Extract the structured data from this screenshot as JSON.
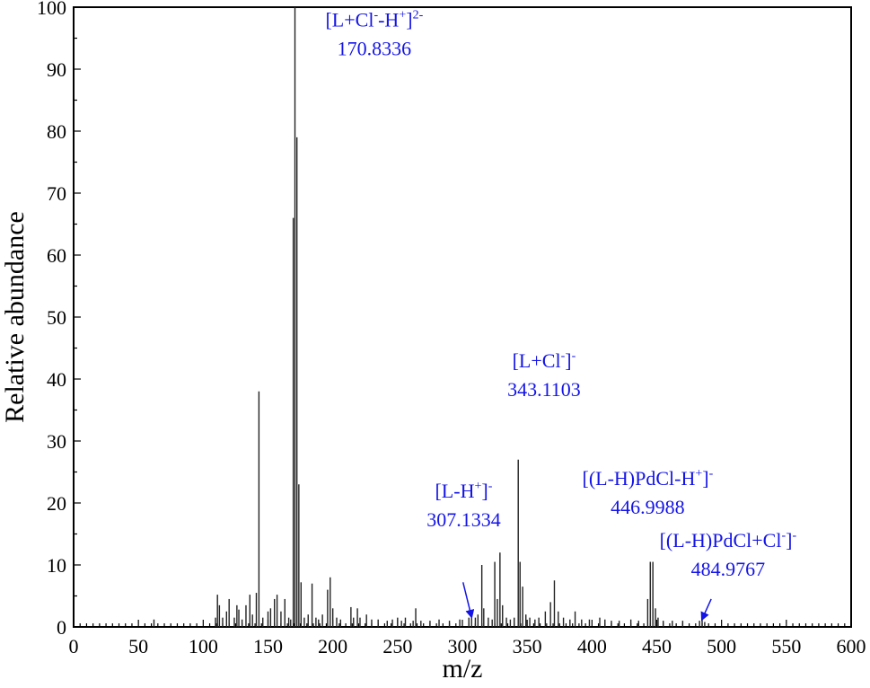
{
  "chart_data": {
    "type": "bar",
    "xlabel": "m/z",
    "ylabel": "Relative abundance",
    "xlim": [
      0,
      600
    ],
    "ylim": [
      0,
      100
    ],
    "x_ticks": [
      0,
      50,
      100,
      150,
      200,
      250,
      300,
      350,
      400,
      450,
      500,
      550,
      600
    ],
    "y_ticks": [
      0,
      10,
      20,
      30,
      40,
      50,
      60,
      70,
      80,
      90,
      100
    ],
    "grid": false,
    "annotation_color": "#1414e6",
    "peaks": [
      {
        "mz": 62,
        "y": 1.2
      },
      {
        "mz": 109.5,
        "y": 1.5
      },
      {
        "mz": 111,
        "y": 5.2
      },
      {
        "mz": 112.5,
        "y": 3.5
      },
      {
        "mz": 115,
        "y": 1.5
      },
      {
        "mz": 118,
        "y": 2.5
      },
      {
        "mz": 120,
        "y": 4.5
      },
      {
        "mz": 124,
        "y": 1.5
      },
      {
        "mz": 126,
        "y": 3.5
      },
      {
        "mz": 127.5,
        "y": 2.8
      },
      {
        "mz": 130,
        "y": 1.2
      },
      {
        "mz": 133,
        "y": 3.5
      },
      {
        "mz": 136,
        "y": 5.2
      },
      {
        "mz": 138,
        "y": 2.0
      },
      {
        "mz": 141,
        "y": 5.5
      },
      {
        "mz": 143,
        "y": 38
      },
      {
        "mz": 146,
        "y": 1.5
      },
      {
        "mz": 150,
        "y": 2.5
      },
      {
        "mz": 152,
        "y": 3.0
      },
      {
        "mz": 155,
        "y": 4.5
      },
      {
        "mz": 157,
        "y": 5.2
      },
      {
        "mz": 160,
        "y": 2.5
      },
      {
        "mz": 163,
        "y": 4.5
      },
      {
        "mz": 166,
        "y": 1.5
      },
      {
        "mz": 167.5,
        "y": 1.2
      },
      {
        "mz": 169.5,
        "y": 66
      },
      {
        "mz": 170.8,
        "y": 100
      },
      {
        "mz": 172.3,
        "y": 79
      },
      {
        "mz": 173.8,
        "y": 23
      },
      {
        "mz": 175.5,
        "y": 7.2
      },
      {
        "mz": 178,
        "y": 1.5
      },
      {
        "mz": 181,
        "y": 2.0
      },
      {
        "mz": 184,
        "y": 7.0
      },
      {
        "mz": 187,
        "y": 1.5
      },
      {
        "mz": 189,
        "y": 1.2
      },
      {
        "mz": 192,
        "y": 2.0
      },
      {
        "mz": 196,
        "y": 6.0
      },
      {
        "mz": 198,
        "y": 8.0
      },
      {
        "mz": 200,
        "y": 3.0
      },
      {
        "mz": 203,
        "y": 1.5
      },
      {
        "mz": 206,
        "y": 1.2
      },
      {
        "mz": 214,
        "y": 3.2
      },
      {
        "mz": 216,
        "y": 1.5
      },
      {
        "mz": 219,
        "y": 3.0
      },
      {
        "mz": 221,
        "y": 1.5
      },
      {
        "mz": 226,
        "y": 2.0
      },
      {
        "mz": 230,
        "y": 1.2
      },
      {
        "mz": 235,
        "y": 1.2
      },
      {
        "mz": 242,
        "y": 1.0
      },
      {
        "mz": 246,
        "y": 1.2
      },
      {
        "mz": 250,
        "y": 1.5
      },
      {
        "mz": 253,
        "y": 1.0
      },
      {
        "mz": 256,
        "y": 1.5
      },
      {
        "mz": 262,
        "y": 1.0
      },
      {
        "mz": 264,
        "y": 3.0
      },
      {
        "mz": 268,
        "y": 1.0
      },
      {
        "mz": 275,
        "y": 1.0
      },
      {
        "mz": 282,
        "y": 1.2
      },
      {
        "mz": 290,
        "y": 1.0
      },
      {
        "mz": 298,
        "y": 1.2
      },
      {
        "mz": 305,
        "y": 1.5
      },
      {
        "mz": 307.1,
        "y": 1.8
      },
      {
        "mz": 310,
        "y": 1.5
      },
      {
        "mz": 312,
        "y": 2.0
      },
      {
        "mz": 315,
        "y": 10.0
      },
      {
        "mz": 316.5,
        "y": 3.0
      },
      {
        "mz": 320,
        "y": 1.5
      },
      {
        "mz": 323,
        "y": 1.2
      },
      {
        "mz": 325,
        "y": 10.5
      },
      {
        "mz": 327,
        "y": 4.5
      },
      {
        "mz": 329,
        "y": 12.0
      },
      {
        "mz": 331,
        "y": 3.5
      },
      {
        "mz": 334,
        "y": 1.5
      },
      {
        "mz": 337,
        "y": 1.2
      },
      {
        "mz": 340,
        "y": 1.5
      },
      {
        "mz": 343.1,
        "y": 27
      },
      {
        "mz": 344.5,
        "y": 10.5
      },
      {
        "mz": 346.5,
        "y": 6.5
      },
      {
        "mz": 349,
        "y": 2.0
      },
      {
        "mz": 352,
        "y": 1.5
      },
      {
        "mz": 356,
        "y": 1.2
      },
      {
        "mz": 359,
        "y": 1.5
      },
      {
        "mz": 364,
        "y": 2.5
      },
      {
        "mz": 368,
        "y": 4.0
      },
      {
        "mz": 371,
        "y": 7.5
      },
      {
        "mz": 374,
        "y": 2.5
      },
      {
        "mz": 378,
        "y": 1.5
      },
      {
        "mz": 383,
        "y": 1.2
      },
      {
        "mz": 387,
        "y": 2.5
      },
      {
        "mz": 392,
        "y": 1.2
      },
      {
        "mz": 398,
        "y": 1.2
      },
      {
        "mz": 406,
        "y": 1.5
      },
      {
        "mz": 410,
        "y": 1.2
      },
      {
        "mz": 415,
        "y": 1.0
      },
      {
        "mz": 421,
        "y": 1.0
      },
      {
        "mz": 430,
        "y": 1.2
      },
      {
        "mz": 436,
        "y": 1.0
      },
      {
        "mz": 443,
        "y": 4.5
      },
      {
        "mz": 445,
        "y": 10.5
      },
      {
        "mz": 447,
        "y": 10.5
      },
      {
        "mz": 449,
        "y": 3.0
      },
      {
        "mz": 451,
        "y": 1.5
      },
      {
        "mz": 455,
        "y": 1.0
      },
      {
        "mz": 462,
        "y": 1.0
      },
      {
        "mz": 470,
        "y": 1.0
      },
      {
        "mz": 483,
        "y": 1.0
      },
      {
        "mz": 485,
        "y": 1.2
      },
      {
        "mz": 487,
        "y": 0.8
      }
    ],
    "annotations": [
      {
        "id": "ann-1708",
        "formula": [
          {
            "t": "[L+Cl"
          },
          {
            "t": "-",
            "sup": true
          },
          {
            "t": "-H"
          },
          {
            "t": "+",
            "sup": true
          },
          {
            "t": "]"
          },
          {
            "t": "2-",
            "sup": true
          }
        ],
        "value": "170.8336",
        "lx": 232,
        "ly": 96,
        "arrow": null
      },
      {
        "id": "ann-3431",
        "formula": [
          {
            "t": "[L+Cl"
          },
          {
            "t": "-",
            "sup": true
          },
          {
            "t": "]"
          },
          {
            "t": "-",
            "sup": true
          }
        ],
        "value": "343.1103",
        "lx": 363,
        "ly": 41,
        "arrow": null
      },
      {
        "id": "ann-3071",
        "formula": [
          {
            "t": "[L-H"
          },
          {
            "t": "+",
            "sup": true
          },
          {
            "t": "]"
          },
          {
            "t": "-",
            "sup": true
          }
        ],
        "value": "307.1334",
        "lx": 301,
        "ly": 20,
        "arrow": [
          [
            300.5,
            7.2
          ],
          [
            307.1,
            1.6
          ]
        ]
      },
      {
        "id": "ann-4469",
        "formula": [
          {
            "t": "[(L-H)PdCl-H"
          },
          {
            "t": "+",
            "sup": true
          },
          {
            "t": "]"
          },
          {
            "t": "-",
            "sup": true
          }
        ],
        "value": "446.9988",
        "lx": 443,
        "ly": 22,
        "arrow": null
      },
      {
        "id": "ann-4849",
        "formula": [
          {
            "t": "[(L-H)PdCl+Cl"
          },
          {
            "t": "-",
            "sup": true
          },
          {
            "t": "]"
          },
          {
            "t": "-",
            "sup": true
          }
        ],
        "value": "484.9767",
        "lx": 505,
        "ly": 12,
        "arrow": [
          [
            492,
            4.5
          ],
          [
            484.9,
            1.2
          ]
        ]
      }
    ]
  }
}
